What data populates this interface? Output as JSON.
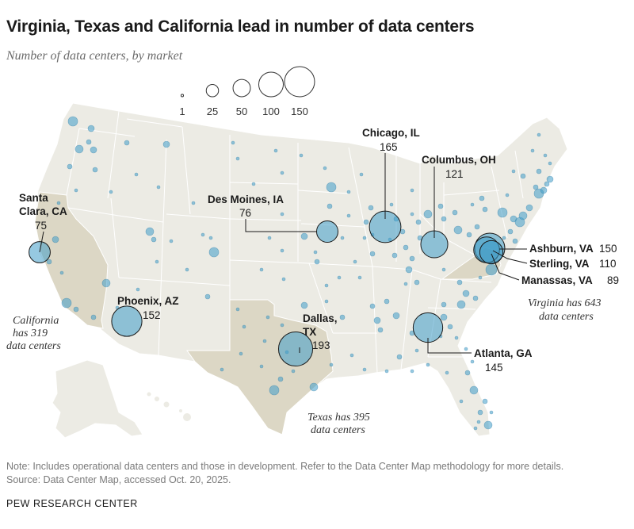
{
  "title": "Virginia, Texas and California lead in number of data centers",
  "subtitle": "Number of data centers, by market",
  "legend": {
    "sizes": [
      {
        "label": "1",
        "value": 1
      },
      {
        "label": "25",
        "value": 25
      },
      {
        "label": "50",
        "value": 50
      },
      {
        "label": "100",
        "value": 100
      },
      {
        "label": "150",
        "value": 150
      }
    ]
  },
  "colors": {
    "land": "#ecebe4",
    "highlight_state": "#dcd7c5",
    "state_border": "#ffffff",
    "bubble_fill": "#3f9dc9",
    "bubble_stroke": "#2a7aa5",
    "label_bubble_stroke": "#1a1a1a"
  },
  "labeled_markets": [
    {
      "name": "Santa Clara, CA",
      "name_line1": "Santa",
      "name_line2": "Clara, CA",
      "value": 75,
      "value_label": "75"
    },
    {
      "name": "Phoenix, AZ",
      "value": 152,
      "value_label": "152"
    },
    {
      "name": "Des Moines, IA",
      "value": 76,
      "value_label": "76"
    },
    {
      "name": "Chicago, IL",
      "value": 165,
      "value_label": "165"
    },
    {
      "name": "Columbus, OH",
      "value": 121,
      "value_label": "121"
    },
    {
      "name": "Dallas, TX",
      "name_line1": "Dallas,",
      "name_line2": "TX",
      "value": 193,
      "value_label": "193"
    },
    {
      "name": "Atlanta, GA",
      "value": 145,
      "value_label": "145"
    },
    {
      "name": "Ashburn, VA",
      "value": 150,
      "value_label": "150"
    },
    {
      "name": "Sterling, VA",
      "value": 110,
      "value_label": "110"
    },
    {
      "name": "Manassas, VA",
      "value": 89,
      "value_label": "89"
    }
  ],
  "state_notes": [
    {
      "state": "California",
      "line1": "California",
      "line2": "has 319",
      "line3": "data centers"
    },
    {
      "state": "Texas",
      "line1": "Texas has 395",
      "line2": "data centers"
    },
    {
      "state": "Virginia",
      "line1": "Virginia has 643",
      "line2": "data centers"
    }
  ],
  "note": "Note: Includes operational data centers and those in development. Refer to the Data Center Map methodology for more details.",
  "source": "Source: Data Center Map, accessed Oct. 20, 2025.",
  "brand": "PEW RESEARCH CENTER"
}
